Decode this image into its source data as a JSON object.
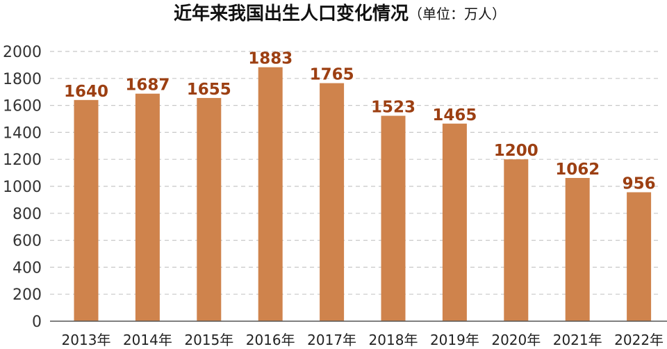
{
  "chart_data": {
    "type": "bar",
    "title": "近年来我国出生人口变化情况",
    "subtitle": "（单位：万人）",
    "categories": [
      "2013年",
      "2014年",
      "2015年",
      "2016年",
      "2017年",
      "2018年",
      "2019年",
      "2020年",
      "2021年",
      "2022年"
    ],
    "values": [
      1640,
      1687,
      1655,
      1883,
      1765,
      1523,
      1465,
      1200,
      1062,
      956
    ],
    "ylim": [
      0,
      2000
    ],
    "yticks": [
      0,
      200,
      400,
      600,
      800,
      1000,
      1200,
      1400,
      1600,
      1800,
      2000
    ],
    "xlabel": "",
    "ylabel": "",
    "grid": true,
    "legend": "none",
    "colors": {
      "bar": "#cf834c",
      "value_label": "#9c3f12",
      "grid": "#c8c8c8",
      "axis": "#555555"
    }
  }
}
